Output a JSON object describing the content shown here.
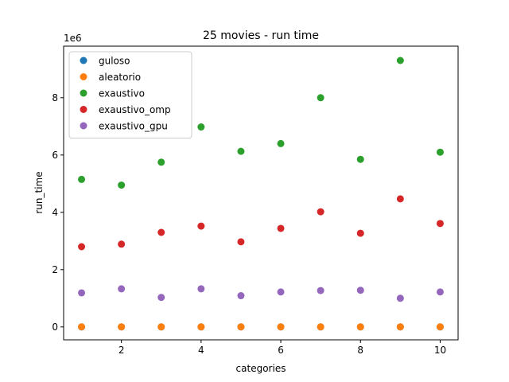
{
  "chart_data": {
    "type": "scatter",
    "title": "25 movies - run time",
    "xlabel": "categories",
    "ylabel": "run_time",
    "y_offset_label": "1e6",
    "xlim": [
      0.55,
      10.45
    ],
    "ylim": [
      -450000,
      9800000
    ],
    "x_ticks": [
      2,
      4,
      6,
      8,
      10
    ],
    "y_ticks": [
      0,
      2,
      4,
      6,
      8
    ],
    "y_tick_scale": 1000000,
    "grid": false,
    "legend_position": "top-left",
    "x": [
      1,
      2,
      3,
      4,
      5,
      6,
      7,
      8,
      9,
      10
    ],
    "series": [
      {
        "name": "guloso",
        "color": "#1f77b4",
        "values": [
          200,
          300,
          250,
          300,
          200,
          300,
          400,
          300,
          350,
          300
        ]
      },
      {
        "name": "aleatorio",
        "color": "#ff7f0e",
        "values": [
          1500,
          1800,
          2000,
          2100,
          1900,
          2200,
          2500,
          2300,
          2400,
          2600
        ]
      },
      {
        "name": "exaustivo",
        "color": "#2ca02c",
        "values": [
          5150000,
          4950000,
          5750000,
          6980000,
          6130000,
          6400000,
          8000000,
          5850000,
          9300000,
          6100000
        ]
      },
      {
        "name": "exaustivo_omp",
        "color": "#d62728",
        "values": [
          2800000,
          2890000,
          3300000,
          3520000,
          2970000,
          3440000,
          4020000,
          3270000,
          4470000,
          3610000
        ]
      },
      {
        "name": "exaustivo_gpu",
        "color": "#9467bd",
        "values": [
          1190000,
          1330000,
          1030000,
          1330000,
          1090000,
          1220000,
          1270000,
          1280000,
          1000000,
          1220000
        ]
      }
    ]
  }
}
